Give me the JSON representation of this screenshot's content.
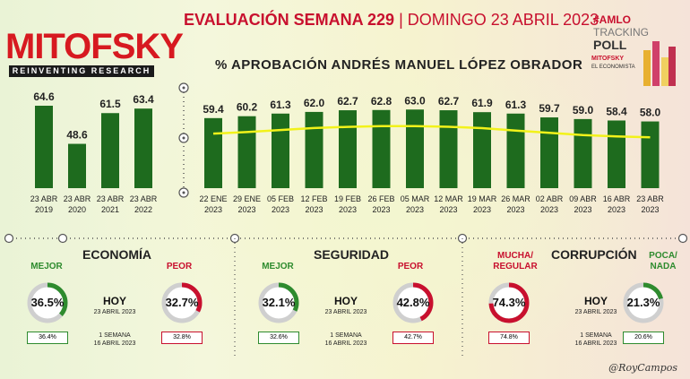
{
  "logo": {
    "title": "MITOFSKY",
    "subtitle": "REINVENTING RESEARCH"
  },
  "header": {
    "title": "EVALUACIÓN SEMANA 229",
    "separator": "|",
    "date": "DOMINGO 23 ABRIL 2023"
  },
  "badge": {
    "line1": "#AMLO",
    "line2": "TRACKING",
    "line3": "POLL",
    "brand1": "MITOFSKY",
    "brand2": "EL ECONOMISTA"
  },
  "chart_data": {
    "type": "bar",
    "title": "% APROBACIÓN ANDRÉS MANUEL LÓPEZ OBRADOR",
    "annual": {
      "categories": [
        [
          "23 ABR",
          "2019"
        ],
        [
          "23 ABR",
          "2020"
        ],
        [
          "23 ABR",
          "2021"
        ],
        [
          "23 ABR",
          "2022"
        ]
      ],
      "values": [
        64.6,
        48.6,
        61.5,
        63.4
      ]
    },
    "weekly": {
      "categories": [
        [
          "22 ENE",
          "2023"
        ],
        [
          "29 ENE",
          "2023"
        ],
        [
          "05 FEB",
          "2023"
        ],
        [
          "12 FEB",
          "2023"
        ],
        [
          "19 FEB",
          "2023"
        ],
        [
          "26 FEB",
          "2023"
        ],
        [
          "05 MAR",
          "2023"
        ],
        [
          "12 MAR",
          "2023"
        ],
        [
          "19 MAR",
          "2023"
        ],
        [
          "26 MAR",
          "2023"
        ],
        [
          "02 ABR",
          "2023"
        ],
        [
          "09 ABR",
          "2023"
        ],
        [
          "16 ABR",
          "2023"
        ],
        [
          "23 ABR",
          "2023"
        ]
      ],
      "values": [
        59.4,
        60.2,
        61.3,
        62.0,
        62.7,
        62.8,
        63.0,
        62.7,
        61.9,
        61.3,
        59.7,
        59.0,
        58.4,
        58.0
      ]
    },
    "bar_color": "#1e6b1e",
    "trend_color": "#f2f21a"
  },
  "sections": [
    {
      "name": "ECONOMÍA",
      "left_label": "MEJOR",
      "left_value": "36.5%",
      "left_prev": "36.4%",
      "right_label": "PEOR",
      "right_value": "32.7%",
      "right_prev": "32.8%"
    },
    {
      "name": "SEGURIDAD",
      "left_label": "MEJOR",
      "left_value": "32.1%",
      "left_prev": "32.6%",
      "right_label": "PEOR",
      "right_value": "42.8%",
      "right_prev": "42.7%"
    },
    {
      "name": "CORRUPCIÓN",
      "left_label": "MUCHA/ REGULAR",
      "left_value": "74.3%",
      "left_prev": "74.8%",
      "right_label": "POCA/ NADA",
      "right_value": "21.3%",
      "right_prev": "20.6%"
    }
  ],
  "hoy": {
    "label": "HOY",
    "date": "23 ABRIL 2023",
    "week_label": "1 SEMANA",
    "week_date": "16 ABRIL 2023"
  },
  "signature": "@RoyCampos",
  "colors": {
    "green": "#2e8b2e",
    "red": "#c8102e",
    "ring_green": "#2e8b2e",
    "ring_red": "#c8102e"
  }
}
